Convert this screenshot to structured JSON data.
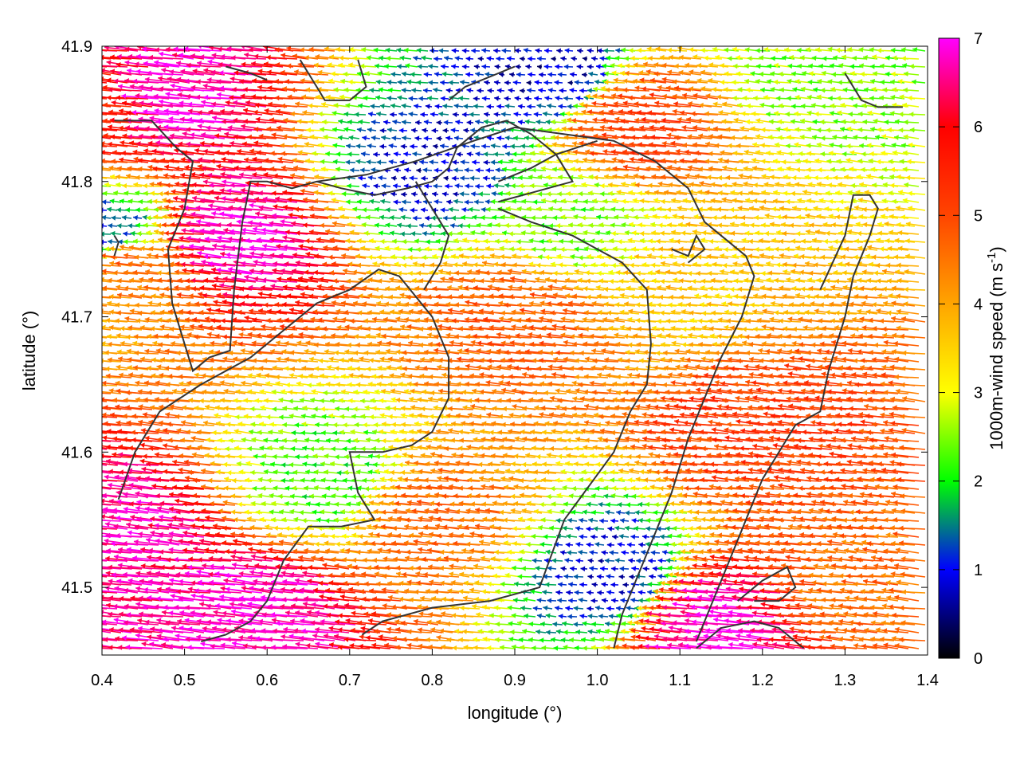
{
  "chart_data": {
    "type": "vector-field",
    "title": "",
    "xlabel": "longitude (°)",
    "ylabel": "latitude (°)",
    "xlim": [
      0.4,
      1.4
    ],
    "ylim": [
      41.45,
      41.9
    ],
    "x_ticks": [
      0.4,
      0.5,
      0.6,
      0.7,
      0.8,
      0.9,
      1.0,
      1.1,
      1.2,
      1.3,
      1.4
    ],
    "y_ticks": [
      41.5,
      41.6,
      41.7,
      41.8,
      41.9
    ],
    "x_tick_labels": [
      "0.4",
      "0.5",
      "0.6",
      "0.7",
      "0.8",
      "0.9",
      "1.0",
      "1.1",
      "1.2",
      "1.3",
      "1.4"
    ],
    "y_tick_labels": [
      "41.5",
      "41.6",
      "41.7",
      "41.8",
      "41.9"
    ],
    "colorbar": {
      "label_main": "1000m-wind speed (m s",
      "label_exp": "-1",
      "label_end": ")",
      "range": [
        0,
        7
      ],
      "ticks": [
        "0",
        "1",
        "2",
        "3",
        "4",
        "5",
        "6",
        "7"
      ],
      "colors": [
        "#000000",
        "#0000ff",
        "#00ff00",
        "#ffff00",
        "#ffa500",
        "#ff4500",
        "#ff0000",
        "#ff00ff"
      ]
    },
    "wind_speed_regions": [
      {
        "lon": 0.5,
        "lat": 41.86,
        "speed": 6.8
      },
      {
        "lon": 0.58,
        "lat": 41.76,
        "speed": 6.8
      },
      {
        "lon": 0.6,
        "lat": 41.48,
        "speed": 6.8
      },
      {
        "lon": 0.45,
        "lat": 41.54,
        "speed": 6.6
      },
      {
        "lon": 0.42,
        "lat": 41.85,
        "speed": 5.6
      },
      {
        "lon": 0.44,
        "lat": 41.74,
        "speed": 4.6
      },
      {
        "lon": 0.8,
        "lat": 41.81,
        "speed": 0.9
      },
      {
        "lon": 0.95,
        "lat": 41.88,
        "speed": 0.8
      },
      {
        "lon": 1.02,
        "lat": 41.51,
        "speed": 1.0
      },
      {
        "lon": 0.42,
        "lat": 41.76,
        "speed": 1.2
      },
      {
        "lon": 0.68,
        "lat": 41.58,
        "speed": 2.2
      },
      {
        "lon": 0.98,
        "lat": 41.77,
        "speed": 2.4
      },
      {
        "lon": 1.28,
        "lat": 41.88,
        "speed": 2.5
      },
      {
        "lon": 0.92,
        "lat": 41.7,
        "speed": 4.8
      },
      {
        "lon": 1.2,
        "lat": 41.62,
        "speed": 5.2
      },
      {
        "lon": 1.33,
        "lat": 41.5,
        "speed": 4.6
      },
      {
        "lon": 1.16,
        "lat": 41.47,
        "speed": 6.8
      },
      {
        "lon": 0.82,
        "lat": 41.55,
        "speed": 4.6
      },
      {
        "lon": 1.06,
        "lat": 41.84,
        "speed": 5.2
      },
      {
        "lon": 1.12,
        "lat": 41.72,
        "speed": 3.6
      }
    ],
    "contours": [
      [
        [
          0.415,
          41.845
        ],
        [
          0.46,
          41.845
        ],
        [
          0.49,
          41.825
        ],
        [
          0.51,
          41.815
        ],
        [
          0.5,
          41.78
        ],
        [
          0.48,
          41.75
        ],
        [
          0.485,
          41.71
        ],
        [
          0.5,
          41.68
        ],
        [
          0.51,
          41.66
        ],
        [
          0.53,
          41.67
        ],
        [
          0.555,
          41.675
        ],
        [
          0.56,
          41.72
        ],
        [
          0.57,
          41.77
        ],
        [
          0.58,
          41.8
        ],
        [
          0.6,
          41.8
        ],
        [
          0.63,
          41.795
        ],
        [
          0.66,
          41.8
        ],
        [
          0.72,
          41.805
        ],
        [
          0.78,
          41.815
        ],
        [
          0.85,
          41.83
        ],
        [
          0.9,
          41.84
        ],
        [
          0.96,
          41.835
        ],
        [
          1.02,
          41.83
        ],
        [
          1.07,
          41.815
        ],
        [
          1.11,
          41.795
        ],
        [
          1.13,
          41.77
        ],
        [
          1.15,
          41.76
        ],
        [
          1.18,
          41.745
        ],
        [
          1.19,
          41.73
        ],
        [
          1.175,
          41.7
        ],
        [
          1.15,
          41.67
        ],
        [
          1.13,
          41.64
        ],
        [
          1.11,
          41.61
        ],
        [
          1.09,
          41.57
        ],
        [
          1.07,
          41.54
        ],
        [
          1.05,
          41.51
        ],
        [
          1.03,
          41.48
        ],
        [
          1.02,
          41.455
        ]
      ],
      [
        [
          0.88,
          41.78
        ],
        [
          0.92,
          41.77
        ],
        [
          0.97,
          41.76
        ],
        [
          1.03,
          41.74
        ],
        [
          1.06,
          41.72
        ],
        [
          1.065,
          41.68
        ],
        [
          1.06,
          41.65
        ],
        [
          1.04,
          41.63
        ],
        [
          1.02,
          41.6
        ],
        [
          0.99,
          41.575
        ],
        [
          0.96,
          41.55
        ],
        [
          0.93,
          41.5
        ],
        [
          0.87,
          41.49
        ],
        [
          0.8,
          41.485
        ],
        [
          0.74,
          41.475
        ],
        [
          0.715,
          41.465
        ]
      ],
      [
        [
          0.42,
          41.565
        ],
        [
          0.44,
          41.6
        ],
        [
          0.47,
          41.63
        ],
        [
          0.52,
          41.65
        ],
        [
          0.58,
          41.67
        ],
        [
          0.62,
          41.69
        ],
        [
          0.66,
          41.71
        ],
        [
          0.7,
          41.72
        ],
        [
          0.735,
          41.735
        ],
        [
          0.76,
          41.73
        ],
        [
          0.8,
          41.7
        ],
        [
          0.82,
          41.67
        ],
        [
          0.82,
          41.64
        ],
        [
          0.8,
          41.615
        ],
        [
          0.775,
          41.605
        ],
        [
          0.74,
          41.6
        ],
        [
          0.7,
          41.6
        ],
        [
          0.71,
          41.57
        ],
        [
          0.73,
          41.55
        ],
        [
          0.69,
          41.545
        ],
        [
          0.65,
          41.545
        ],
        [
          0.62,
          41.52
        ],
        [
          0.6,
          41.49
        ],
        [
          0.58,
          41.475
        ],
        [
          0.55,
          41.465
        ],
        [
          0.52,
          41.46
        ]
      ],
      [
        [
          0.88,
          41.785
        ],
        [
          0.91,
          41.79
        ],
        [
          0.94,
          41.795
        ],
        [
          0.97,
          41.8
        ],
        [
          0.95,
          41.82
        ],
        [
          0.92,
          41.835
        ],
        [
          0.89,
          41.845
        ],
        [
          0.86,
          41.84
        ],
        [
          0.83,
          41.825
        ],
        [
          0.82,
          41.81
        ],
        [
          0.8,
          41.8
        ],
        [
          0.77,
          41.795
        ],
        [
          0.73,
          41.79
        ],
        [
          0.69,
          41.795
        ],
        [
          0.66,
          41.8
        ]
      ],
      [
        [
          0.78,
          41.8
        ],
        [
          0.8,
          41.78
        ],
        [
          0.82,
          41.76
        ],
        [
          0.81,
          41.74
        ],
        [
          0.79,
          41.72
        ]
      ],
      [
        [
          0.82,
          41.86
        ],
        [
          0.84,
          41.87
        ],
        [
          0.86,
          41.875
        ],
        [
          0.88,
          41.88
        ],
        [
          0.9,
          41.885
        ]
      ],
      [
        [
          0.88,
          41.8
        ],
        [
          0.92,
          41.81
        ],
        [
          0.95,
          41.82
        ],
        [
          1.0,
          41.83
        ]
      ],
      [
        [
          1.09,
          41.75
        ],
        [
          1.11,
          41.745
        ],
        [
          1.12,
          41.76
        ],
        [
          1.13,
          41.75
        ],
        [
          1.11,
          41.74
        ]
      ],
      [
        [
          0.64,
          41.89
        ],
        [
          0.66,
          41.87
        ],
        [
          0.67,
          41.86
        ],
        [
          0.7,
          41.86
        ],
        [
          0.72,
          41.87
        ],
        [
          0.71,
          41.89
        ]
      ],
      [
        [
          0.55,
          41.885
        ],
        [
          0.58,
          41.88
        ],
        [
          0.6,
          41.875
        ]
      ],
      [
        [
          1.3,
          41.88
        ],
        [
          1.32,
          41.86
        ],
        [
          1.34,
          41.855
        ],
        [
          1.37,
          41.855
        ]
      ],
      [
        [
          1.27,
          41.72
        ],
        [
          1.3,
          41.76
        ],
        [
          1.31,
          41.79
        ],
        [
          1.33,
          41.79
        ],
        [
          1.34,
          41.78
        ],
        [
          1.33,
          41.76
        ],
        [
          1.31,
          41.73
        ],
        [
          1.3,
          41.7
        ],
        [
          1.28,
          41.66
        ],
        [
          1.27,
          41.63
        ],
        [
          1.24,
          41.62
        ],
        [
          1.22,
          41.6
        ],
        [
          1.2,
          41.58
        ],
        [
          1.18,
          41.55
        ],
        [
          1.16,
          41.52
        ],
        [
          1.14,
          41.49
        ],
        [
          1.12,
          41.46
        ]
      ],
      [
        [
          1.17,
          41.49
        ],
        [
          1.2,
          41.505
        ],
        [
          1.23,
          41.515
        ],
        [
          1.24,
          41.5
        ],
        [
          1.22,
          41.49
        ],
        [
          1.19,
          41.49
        ]
      ],
      [
        [
          1.12,
          41.455
        ],
        [
          1.15,
          41.47
        ],
        [
          1.19,
          41.475
        ],
        [
          1.22,
          41.47
        ],
        [
          1.24,
          41.46
        ],
        [
          1.25,
          41.455
        ]
      ],
      [
        [
          0.415,
          41.76
        ],
        [
          0.42,
          41.755
        ],
        [
          0.415,
          41.745
        ]
      ]
    ]
  }
}
